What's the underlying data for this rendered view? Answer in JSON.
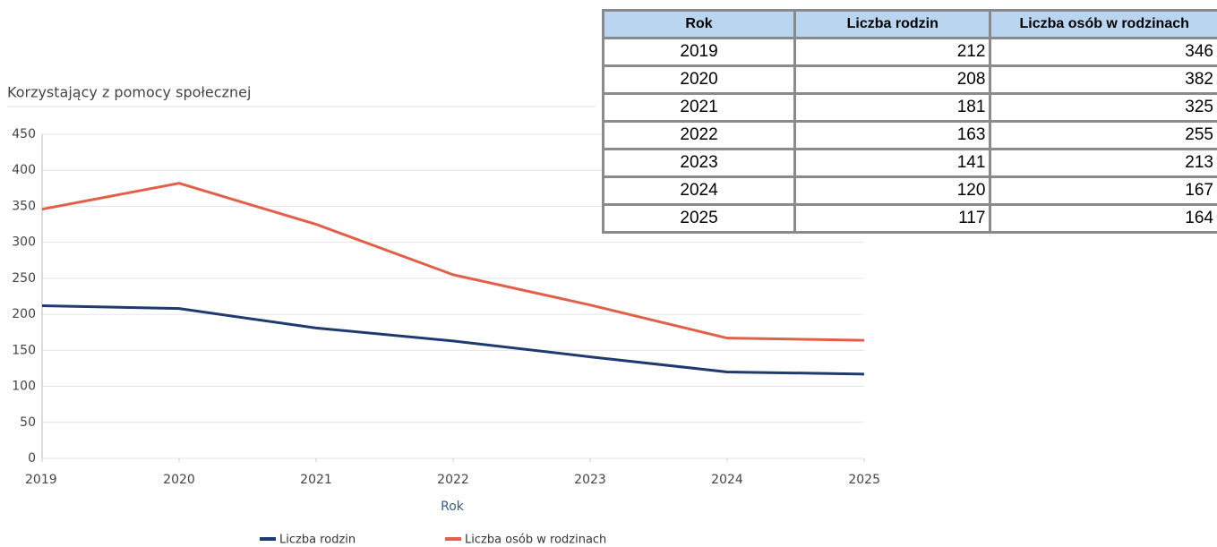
{
  "chart_data": {
    "type": "line",
    "title": "Korzystający z pomocy społecznej",
    "x_label": "Rok",
    "x": [
      2019,
      2020,
      2021,
      2022,
      2023,
      2024,
      2025
    ],
    "xlim": [
      2019,
      2025
    ],
    "xticks": [
      2019,
      2020,
      2021,
      2022,
      2023,
      2024,
      2025
    ],
    "ylim": [
      0,
      450
    ],
    "yticks": [
      0,
      50,
      100,
      150,
      200,
      250,
      300,
      350,
      400,
      450
    ],
    "grid": true,
    "legend": "bottom",
    "series": [
      {
        "name": "Liczba rodzin",
        "color": "#1f3a6e",
        "values": [
          212,
          208,
          181,
          163,
          141,
          120,
          117
        ]
      },
      {
        "name": "Liczba osób w rodzinach",
        "color": "#e0604a",
        "values": [
          346,
          382,
          325,
          255,
          213,
          167,
          164
        ]
      }
    ]
  },
  "table": {
    "header": [
      "Rok",
      "Liczba rodzin",
      "Liczba osób w rodzinach"
    ],
    "rows": [
      [
        2019,
        212,
        346
      ],
      [
        2020,
        208,
        382
      ],
      [
        2021,
        181,
        325
      ],
      [
        2022,
        163,
        255
      ],
      [
        2023,
        141,
        213
      ],
      [
        2024,
        120,
        167
      ],
      [
        2025,
        117,
        164
      ]
    ]
  }
}
